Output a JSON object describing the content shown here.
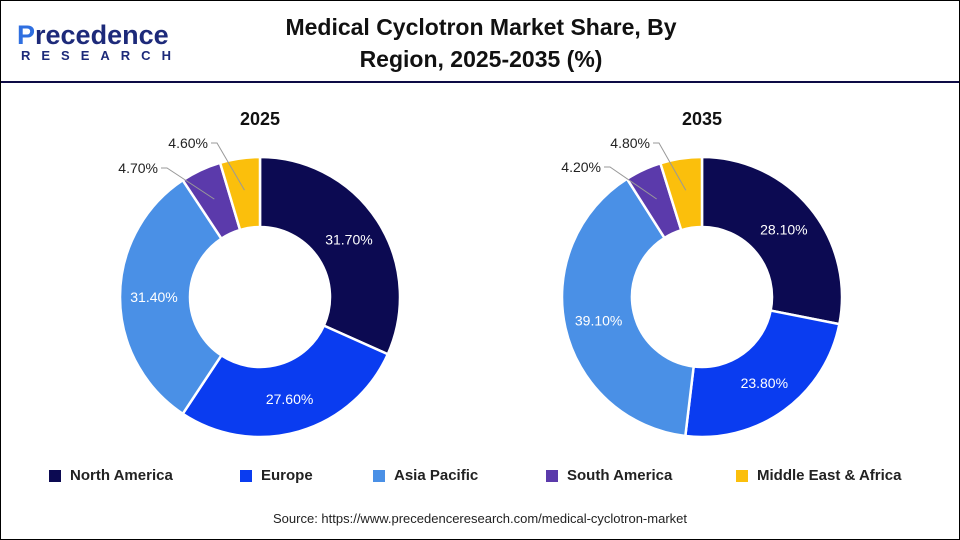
{
  "logo": {
    "text_top": "Precedence",
    "text_bottom": "RESEARCH"
  },
  "chart_data": [
    {
      "type": "pie",
      "style": "donut",
      "title": "2025",
      "categories": [
        "North America",
        "Europe",
        "Asia Pacific",
        "South America",
        "Middle East & Africa"
      ],
      "values": [
        31.7,
        27.6,
        31.4,
        4.7,
        4.6
      ],
      "labels": [
        "31.70%",
        "27.60%",
        "31.40%",
        "4.70%",
        "4.60%"
      ]
    },
    {
      "type": "pie",
      "style": "donut",
      "title": "2035",
      "categories": [
        "North America",
        "Europe",
        "Asia Pacific",
        "South America",
        "Middle East & Africa"
      ],
      "values": [
        28.1,
        23.8,
        39.1,
        4.2,
        4.8
      ],
      "labels": [
        "28.10%",
        "23.80%",
        "39.10%",
        "4.20%",
        "4.80%"
      ]
    }
  ],
  "chart_title": "Medical Cyclotron Market Share, By Region, 2025-2035 (%)",
  "colors": [
    "#0c0a52",
    "#0a3cf0",
    "#4a90e6",
    "#5b3aab",
    "#fbbf0c"
  ],
  "legend": [
    "North America",
    "Europe",
    "Asia Pacific",
    "South America",
    "Middle East & Africa"
  ],
  "legend_placement": "bottom",
  "source": "Source: https://www.precedenceresearch.com/medical-cyclotron-market"
}
